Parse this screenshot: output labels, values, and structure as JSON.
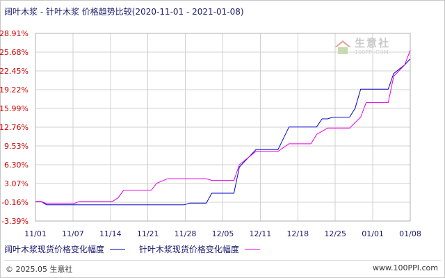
{
  "header": {
    "title": "阔叶木浆 - 针叶木浆 价格趋势比较(2020-11-01 - 2021-01-08)"
  },
  "watermark": {
    "brand": "生意社",
    "url": "100PPI.COM"
  },
  "legend": {
    "items": [
      {
        "label": "阔叶木浆现货价格变化幅度"
      },
      {
        "label": "针叶木浆现货价格变化幅度"
      }
    ]
  },
  "footer": {
    "copyright": "© 2025.05 生意社",
    "site": "www.100PPI.com"
  },
  "colors": {
    "series_a": "#0000cc",
    "series_b": "#e600e6",
    "ytick": "#cc0000",
    "xtick": "#1a1a6e",
    "grid": "#d0d0d0"
  },
  "chart_data": {
    "type": "line",
    "title": "阔叶木浆 - 针叶木浆 价格趋势比较(2020-11-01 - 2021-01-08)",
    "xlabel": "",
    "ylabel": "",
    "x_ticks": [
      "11/01",
      "11/07",
      "11/14",
      "11/21",
      "11/28",
      "12/05",
      "12/11",
      "12/18",
      "12/25",
      "01/01",
      "01/08"
    ],
    "y_ticks": [
      "28.91%",
      "25.68%",
      "22.45%",
      "19.22%",
      "15.99%",
      "12.76%",
      "9.53%",
      "6.30%",
      "3.07%",
      "-0.16%",
      "-3.39%"
    ],
    "ylim": [
      -3.39,
      28.91
    ],
    "grid": true,
    "legend_position": "bottom",
    "series": [
      {
        "name": "阔叶木浆现货价格变化幅度",
        "points": [
          [
            "11/01",
            0.0
          ],
          [
            "11/02",
            0.0
          ],
          [
            "11/03",
            -0.6
          ],
          [
            "11/04",
            -0.6
          ],
          [
            "11/08",
            -0.6
          ],
          [
            "11/09",
            -0.6
          ],
          [
            "11/10",
            -0.6
          ],
          [
            "11/28",
            -0.6
          ],
          [
            "11/29",
            -0.3
          ],
          [
            "12/02",
            -0.3
          ],
          [
            "12/03",
            1.4
          ],
          [
            "12/07",
            1.4
          ],
          [
            "12/08",
            5.9
          ],
          [
            "12/11",
            8.9
          ],
          [
            "12/15",
            8.9
          ],
          [
            "12/17",
            12.8
          ],
          [
            "12/22",
            12.8
          ],
          [
            "12/23",
            14.2
          ],
          [
            "12/24",
            14.2
          ],
          [
            "12/25",
            14.5
          ],
          [
            "12/28",
            14.5
          ],
          [
            "12/29",
            16.0
          ],
          [
            "12/30",
            19.3
          ],
          [
            "01/04",
            19.3
          ],
          [
            "01/05",
            22.0
          ],
          [
            "01/07",
            23.5
          ],
          [
            "01/08",
            24.5
          ]
        ]
      },
      {
        "name": "针叶木浆现货价格变化幅度",
        "points": [
          [
            "11/01",
            0.0
          ],
          [
            "11/02",
            0.0
          ],
          [
            "11/03",
            -0.4
          ],
          [
            "11/04",
            -0.4
          ],
          [
            "11/08",
            -0.4
          ],
          [
            "11/09",
            0.0
          ],
          [
            "11/10",
            0.0
          ],
          [
            "11/15",
            0.0
          ],
          [
            "11/16",
            0.6
          ],
          [
            "11/17",
            1.9
          ],
          [
            "11/22",
            1.9
          ],
          [
            "11/23",
            3.1
          ],
          [
            "11/25",
            3.9
          ],
          [
            "12/02",
            3.9
          ],
          [
            "12/03",
            3.6
          ],
          [
            "12/07",
            3.6
          ],
          [
            "12/08",
            6.3
          ],
          [
            "12/11",
            8.6
          ],
          [
            "12/15",
            8.6
          ],
          [
            "12/17",
            9.9
          ],
          [
            "12/21",
            9.9
          ],
          [
            "12/22",
            11.5
          ],
          [
            "12/24",
            12.6
          ],
          [
            "12/28",
            12.6
          ],
          [
            "12/30",
            14.5
          ],
          [
            "12/31",
            17.0
          ],
          [
            "01/04",
            17.0
          ],
          [
            "01/05",
            21.5
          ],
          [
            "01/07",
            23.5
          ],
          [
            "01/08",
            26.0
          ]
        ]
      }
    ]
  }
}
